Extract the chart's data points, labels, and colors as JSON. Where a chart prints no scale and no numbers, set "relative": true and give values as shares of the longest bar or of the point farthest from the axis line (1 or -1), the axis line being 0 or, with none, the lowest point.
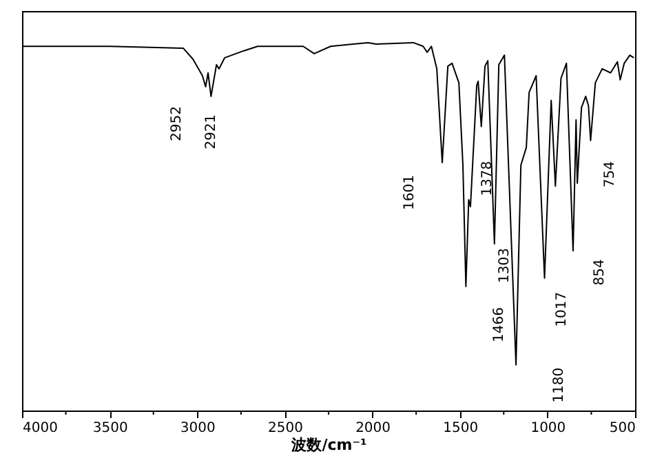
{
  "chart_data": {
    "type": "line",
    "relative": true,
    "xlabel": "波数/cm⁻¹",
    "xlim": [
      4000,
      500
    ],
    "xticks": [
      4000,
      {
        "value": 3750,
        "label": null
      },
      3500,
      {
        "value": 3250,
        "label": null
      },
      3000,
      {
        "value": 2750,
        "label": null
      },
      2500,
      {
        "value": 2250,
        "label": null
      },
      2000,
      {
        "value": 1750,
        "label": null
      },
      1500,
      {
        "value": 1250,
        "label": null
      },
      1000,
      {
        "value": 750,
        "label": null
      },
      500
    ],
    "grid": false,
    "marker": "none",
    "line_style": "solid",
    "series": [
      {
        "color": "#000000",
        "x": [
          4000,
          3500,
          3080,
          3024,
          2970,
          2952,
          2938,
          2921,
          2890,
          2875,
          2843,
          2733,
          2655,
          2395,
          2332,
          2238,
          2025,
          1978,
          1766,
          1710,
          1687,
          1663,
          1632,
          1601,
          1569,
          1545,
          1506,
          1483,
          1466,
          1450,
          1440,
          1404,
          1396,
          1378,
          1357,
          1341,
          1303,
          1278,
          1246,
          1180,
          1152,
          1121,
          1105,
          1065,
          1017,
          979,
          955,
          923,
          892,
          854,
          837,
          830,
          806,
          782,
          766,
          754,
          727,
          688,
          640,
          601,
          585,
          562,
          530,
          507
        ],
        "values": [
          0.99,
          0.99,
          0.985,
          0.955,
          0.91,
          0.88,
          0.918,
          0.854,
          0.94,
          0.929,
          0.959,
          0.978,
          0.99,
          0.99,
          0.97,
          0.99,
          1.0,
          0.996,
          1.0,
          0.99,
          0.974,
          0.99,
          0.929,
          0.674,
          0.936,
          0.944,
          0.891,
          0.667,
          0.337,
          0.573,
          0.554,
          0.884,
          0.895,
          0.772,
          0.936,
          0.951,
          0.453,
          0.94,
          0.966,
          0.124,
          0.667,
          0.715,
          0.865,
          0.91,
          0.36,
          0.843,
          0.61,
          0.903,
          0.944,
          0.434,
          0.79,
          0.618,
          0.824,
          0.854,
          0.828,
          0.734,
          0.891,
          0.929,
          0.918,
          0.948,
          0.899,
          0.944,
          0.966,
          0.959
        ]
      }
    ],
    "annotations": [
      {
        "text": "2952",
        "x": 2952,
        "y": 0.88
      },
      {
        "text": "2921",
        "x": 2921,
        "y": 0.854
      },
      {
        "text": "1601",
        "x": 1601,
        "y": 0.674
      },
      {
        "text": "1378",
        "x": 1378,
        "y": 0.772
      },
      {
        "text": "1466",
        "x": 1466,
        "y": 0.337
      },
      {
        "text": "1303",
        "x": 1303,
        "y": 0.453
      },
      {
        "text": "1180",
        "x": 1180,
        "y": 0.124
      },
      {
        "text": "1017",
        "x": 1017,
        "y": 0.36
      },
      {
        "text": "854",
        "x": 854,
        "y": 0.434
      },
      {
        "text": "754",
        "x": 754,
        "y": 0.734
      }
    ]
  }
}
